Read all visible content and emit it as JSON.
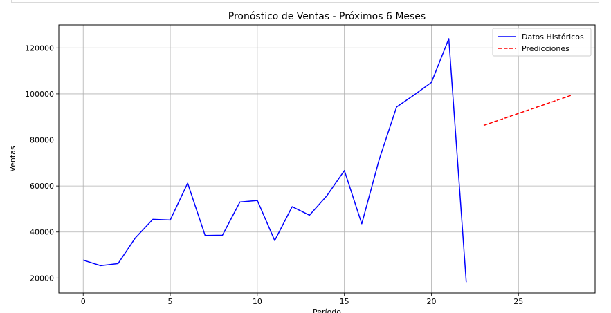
{
  "chart_data": {
    "type": "line",
    "title": "Pronóstico de Ventas - Próximos 6 Meses",
    "xlabel": "Período",
    "ylabel": "Ventas",
    "xlim": [
      -1.4,
      29.4
    ],
    "ylim": [
      13500,
      130000
    ],
    "x_ticks": [
      0,
      5,
      10,
      15,
      20,
      25
    ],
    "y_ticks": [
      20000,
      40000,
      60000,
      80000,
      100000,
      120000
    ],
    "grid": true,
    "legend_position": "top-right",
    "series": [
      {
        "name": "Datos Históricos",
        "color": "#0000ff",
        "style": "solid",
        "x": [
          0,
          1,
          2,
          3,
          4,
          5,
          6,
          7,
          8,
          9,
          10,
          11,
          12,
          13,
          14,
          15,
          16,
          17,
          18,
          19,
          20,
          21,
          22
        ],
        "y": [
          27800,
          25400,
          26300,
          37500,
          45500,
          45200,
          61200,
          38500,
          38600,
          53000,
          53700,
          36300,
          51000,
          47300,
          55800,
          66700,
          43600,
          71500,
          94300,
          99500,
          105000,
          124000,
          18200
        ]
      },
      {
        "name": "Predicciones",
        "color": "#ff0000",
        "style": "dashed",
        "x": [
          23,
          24,
          25,
          26,
          27,
          28
        ],
        "y": [
          86300,
          88900,
          91500,
          94100,
          96700,
          99300
        ]
      }
    ]
  }
}
